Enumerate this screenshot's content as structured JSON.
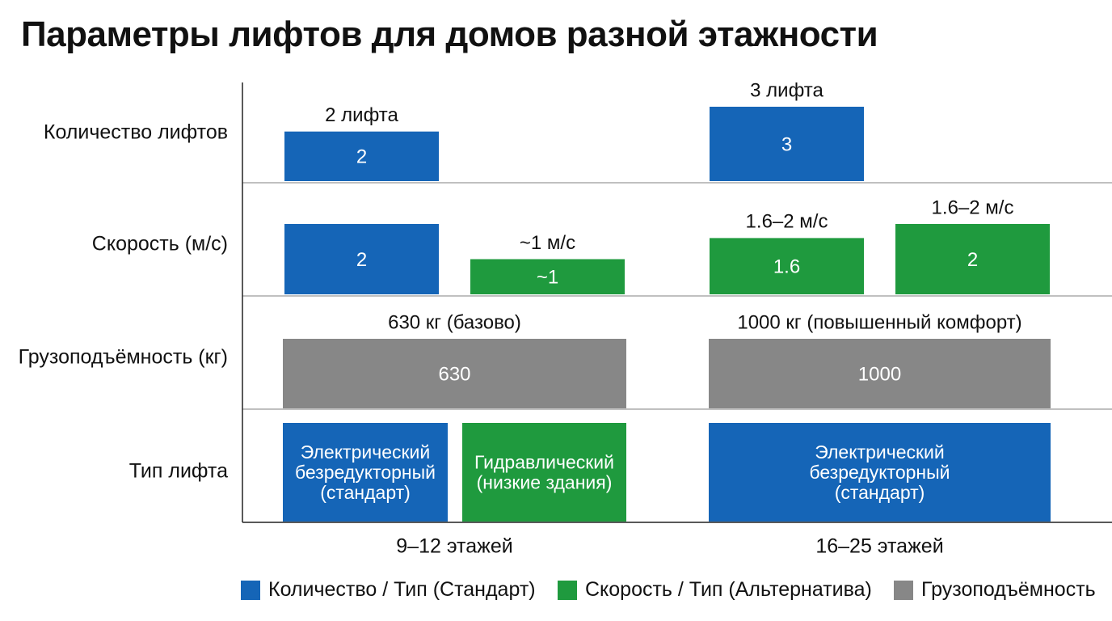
{
  "title": "Параметры лифтов для домов разной этажности",
  "colors": {
    "standard": "#1565b7",
    "alternative": "#1f9a3e",
    "capacity": "#878787"
  },
  "legend": [
    {
      "label": "Количество / Тип (Стандарт)",
      "color_key": "standard"
    },
    {
      "label": "Скорость / Тип (Альтернатива)",
      "color_key": "alternative"
    },
    {
      "label": "Грузоподъёмность",
      "color_key": "capacity"
    }
  ],
  "chart_data": {
    "type": "table",
    "title": "Параметры лифтов для домов разной этажности",
    "categories": [
      "9–12 этажей",
      "16–25 этажей"
    ],
    "rows": [
      {
        "label": "Количество лифтов",
        "kind": "bar",
        "ylim": [
          0,
          3
        ],
        "bars": [
          {
            "category": 0,
            "slot": "left",
            "series": "standard",
            "value": 2,
            "text": "2",
            "above": "2 лифта"
          },
          {
            "category": 1,
            "slot": "left",
            "series": "standard",
            "value": 3,
            "text": "3",
            "above": "3 лифта"
          }
        ]
      },
      {
        "label": "Скорость (м/с)",
        "kind": "bar",
        "ylim": [
          0,
          2.3
        ],
        "bars": [
          {
            "category": 0,
            "slot": "left",
            "series": "standard",
            "value": 2,
            "text": "2",
            "above": ""
          },
          {
            "category": 0,
            "slot": "right",
            "series": "alternative",
            "value": 1,
            "text": "~1",
            "above": "~1 м/с"
          },
          {
            "category": 1,
            "slot": "left",
            "series": "alternative",
            "value": 1.6,
            "text": "1.6",
            "above": "1.6–2 м/с"
          },
          {
            "category": 1,
            "slot": "right",
            "series": "alternative",
            "value": 2,
            "text": "2",
            "above": "1.6–2 м/с"
          }
        ]
      },
      {
        "label": "Грузоподъёмность (кг)",
        "kind": "block",
        "bars": [
          {
            "category": 0,
            "slot": "full",
            "series": "capacity",
            "value": 630,
            "text": "630",
            "above": "630 кг (базово)"
          },
          {
            "category": 1,
            "slot": "full",
            "series": "capacity",
            "value": 1000,
            "text": "1000",
            "above": "1000 кг (повышенный комфорт)"
          }
        ]
      },
      {
        "label": "Тип лифта",
        "kind": "block",
        "bars": [
          {
            "category": 0,
            "slot": "left",
            "series": "standard",
            "text": "Электрический\nбезредукторный\n(стандарт)",
            "above": ""
          },
          {
            "category": 0,
            "slot": "right",
            "series": "alternative",
            "text": "Гидравлический\n(низкие здания)",
            "above": ""
          },
          {
            "category": 1,
            "slot": "full",
            "series": "standard",
            "text": "Электрический\nбезредукторный\n(стандарт)",
            "above": ""
          }
        ]
      }
    ]
  }
}
